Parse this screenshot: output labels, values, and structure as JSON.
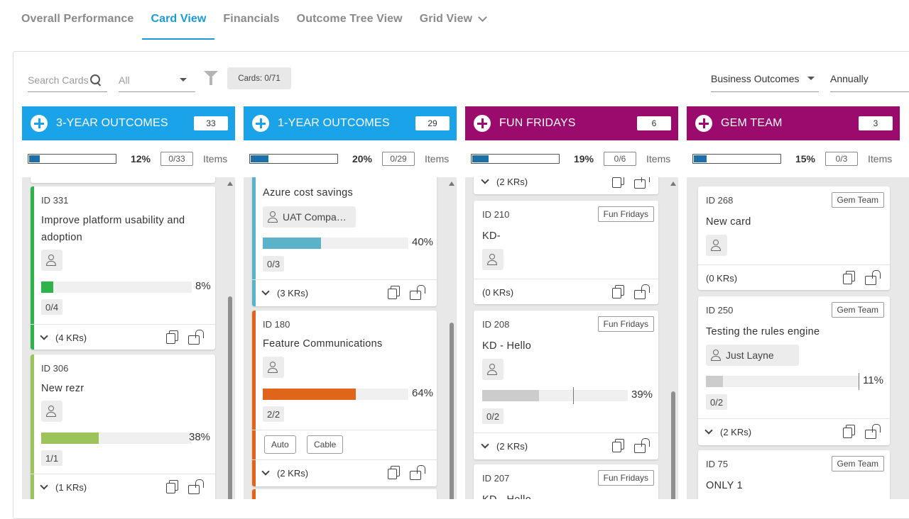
{
  "tabs": [
    {
      "label": "Overall Performance"
    },
    {
      "label": "Card View"
    },
    {
      "label": "Financials"
    },
    {
      "label": "Outcome Tree View"
    },
    {
      "label": "Grid View"
    }
  ],
  "toolbar": {
    "search_placeholder": "Search Cards",
    "filter_select": "All",
    "cards_count": "Cards: 0/71",
    "outcome_select": "Business Outcomes",
    "period_select": "Annually"
  },
  "colors": {
    "blue_header": "#1aa3e8",
    "purple_header": "#9b0a6d",
    "green_accent": "#2db34a",
    "lime_accent": "#9cc45a",
    "teal_accent": "#5ab3c8",
    "orange_accent": "#e0651a"
  },
  "columns": [
    {
      "title": "3-YEAR OUTCOMES",
      "count": "33",
      "pct_value": 12,
      "pct": "12%",
      "done": "0/33",
      "items_label": "Items",
      "cards": [
        {
          "id": "ID 331",
          "title": "Improve platform usability and adoption",
          "progress": 8,
          "progress_label": "8%",
          "krs": "0/4",
          "footer": "(4 KRs)"
        },
        {
          "id": "ID 306",
          "title": "New rezr",
          "progress": 38,
          "progress_label": "38%",
          "krs": "1/1",
          "footer": "(1 KRs)"
        }
      ]
    },
    {
      "title": "1-YEAR OUTCOMES",
      "count": "29",
      "pct_value": 20,
      "pct": "20%",
      "done": "0/29",
      "items_label": "Items",
      "cards": [
        {
          "title": "Azure cost savings",
          "owner": "UAT Compa…",
          "progress": 40,
          "progress_label": "40%",
          "krs": "0/3",
          "footer": "(3 KRs)"
        },
        {
          "id": "ID 180",
          "title": "Feature Communications",
          "progress": 64,
          "progress_label": "64%",
          "krs": "2/2",
          "chips": [
            "Auto",
            "Cable"
          ],
          "footer": "(2 KRs)"
        }
      ]
    },
    {
      "title": "FUN FRIDAYS",
      "count": "6",
      "pct_value": 19,
      "pct": "19%",
      "done": "0/6",
      "items_label": "Items",
      "cards": [
        {
          "footer": "(2 KRs)"
        },
        {
          "id": "ID 210",
          "tag": "Fun Fridays",
          "title": "KD-",
          "footer": "(0 KRs)"
        },
        {
          "id": "ID 208",
          "tag": "Fun Fridays",
          "title": "KD - Hello",
          "progress": 39,
          "progress_label": "39%",
          "target": 63,
          "krs": "0/2",
          "footer": "(2 KRs)"
        },
        {
          "id": "ID 207",
          "tag": "Fun Fridays",
          "title": "KD - Hello"
        }
      ]
    },
    {
      "title": "GEM TEAM",
      "count": "3",
      "pct_value": 15,
      "pct": "15%",
      "done": "0/3",
      "items_label": "Items",
      "cards": [
        {
          "id": "ID 268",
          "tag": "Gem Team",
          "title": "New card",
          "footer": "(0 KRs)"
        },
        {
          "id": "ID 250",
          "tag": "Gem Team",
          "title": "Testing the rules engine",
          "owner": "Just Layne",
          "progress": 11,
          "progress_label": "11%",
          "target": 100,
          "krs": "0/2",
          "footer": "(2 KRs)"
        },
        {
          "id": "ID 75",
          "tag": "Gem Team",
          "title": "ONLY 1"
        }
      ]
    }
  ]
}
